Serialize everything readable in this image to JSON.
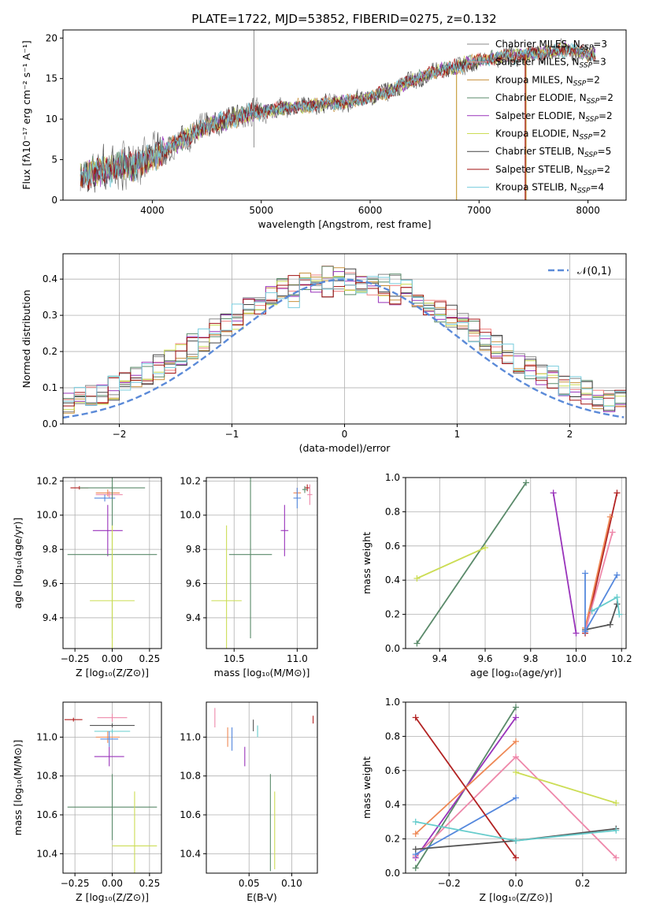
{
  "title": "PLATE=1722, MJD=53852, FIBERID=0275, z=0.132",
  "colors": [
    "#555555",
    "#b22222",
    "#d2a04a",
    "#4a7a6a",
    "#9933bb",
    "#ccdd55",
    "#5588dd",
    "#ee8855",
    "#66cccc",
    "#ee88aa"
  ],
  "models": [
    {
      "name": "Chabrier MILES",
      "nssp": "3",
      "color": "#888888"
    },
    {
      "name": "Salpeter MILES",
      "nssp": "3",
      "color": "#f08080"
    },
    {
      "name": "Kroupa MILES",
      "nssp": "2",
      "color": "#c8903c"
    },
    {
      "name": "Chabrier ELODIE",
      "nssp": "2",
      "color": "#5a8a6a"
    },
    {
      "name": "Salpeter ELODIE",
      "nssp": "2",
      "color": "#9933bb"
    },
    {
      "name": "Kroupa ELODIE",
      "nssp": "2",
      "color": "#ccdd55"
    },
    {
      "name": "Chabrier STELIB",
      "nssp": "5",
      "color": "#444444"
    },
    {
      "name": "Salpeter STELIB",
      "nssp": "2",
      "color": "#a01010"
    },
    {
      "name": "Kroupa STELIB",
      "nssp": "4",
      "color": "#77ccdd"
    }
  ],
  "chart_data": [
    {
      "type": "line",
      "id": "spectrum",
      "xlabel": "wavelength [Angstrom, rest frame]",
      "ylabel": "Flux [fλ10⁻¹⁷ erg cm⁻² s⁻¹ A⁻¹]",
      "xlim": [
        3180,
        8350
      ],
      "ylim": [
        0,
        21
      ],
      "xticks": [
        4000,
        5000,
        6000,
        7000,
        8000
      ],
      "yticks": [
        0,
        5,
        10,
        15,
        20
      ],
      "continuum": [
        [
          3340,
          3.0
        ],
        [
          3500,
          3.4
        ],
        [
          3700,
          4.2
        ],
        [
          3900,
          4.6
        ],
        [
          4000,
          5.3
        ],
        [
          4200,
          6.8
        ],
        [
          4400,
          8.5
        ],
        [
          4600,
          9.6
        ],
        [
          4800,
          10.3
        ],
        [
          5000,
          10.9
        ],
        [
          5200,
          11.3
        ],
        [
          5400,
          11.6
        ],
        [
          5600,
          11.9
        ],
        [
          5800,
          12.1
        ],
        [
          6000,
          12.7
        ],
        [
          6200,
          13.6
        ],
        [
          6400,
          14.8
        ],
        [
          6600,
          15.9
        ],
        [
          6800,
          16.5
        ],
        [
          7000,
          17.2
        ],
        [
          7200,
          17.7
        ],
        [
          7400,
          17.9
        ],
        [
          7600,
          18.2
        ],
        [
          7800,
          18.6
        ],
        [
          8050,
          18.0
        ]
      ]
    },
    {
      "type": "line",
      "id": "residuals",
      "xlabel": "(data-model)/error",
      "ylabel": "Normed distribution",
      "legend": "𝒩(0,1)",
      "xlim": [
        -2.5,
        2.5
      ],
      "ylim": [
        0,
        0.47
      ],
      "xticks": [
        -2,
        -1,
        0,
        1,
        2
      ],
      "yticks": [
        0.0,
        0.1,
        0.2,
        0.3,
        0.4
      ]
    },
    {
      "type": "scatter",
      "id": "age_vs_Z",
      "xlabel": "Z [log₁₀(Z/Z⊙)]",
      "ylabel": "age  [log₁₀(age/yr)]",
      "xlim": [
        -0.33,
        0.33
      ],
      "ylim": [
        9.22,
        10.22
      ],
      "xticks": [
        -0.25,
        0.0,
        0.25
      ],
      "yticks": [
        9.4,
        9.6,
        9.8,
        10.0,
        10.2
      ],
      "points": [
        {
          "x": -0.22,
          "y": 10.16,
          "xe": 0.06,
          "ye": 0.01,
          "c": "#b22222"
        },
        {
          "x": 0.0,
          "y": 10.16,
          "xe": 0.22,
          "ye": 0.01,
          "c": "#5a8a6a"
        },
        {
          "x": -0.03,
          "y": 10.13,
          "xe": 0.08,
          "ye": 0.02,
          "c": "#ee8855"
        },
        {
          "x": -0.02,
          "y": 10.12,
          "xe": 0.09,
          "ye": 0.02,
          "c": "#ee88aa"
        },
        {
          "x": -0.05,
          "y": 10.1,
          "xe": 0.07,
          "ye": 0.02,
          "c": "#5588dd"
        },
        {
          "x": -0.03,
          "y": 9.91,
          "xe": 0.1,
          "ye": 0.15,
          "c": "#9933bb"
        },
        {
          "x": 0.0,
          "y": 9.77,
          "xe": 0.3,
          "ye": 0.49,
          "c": "#5a8a6a"
        },
        {
          "x": 0.0,
          "y": 9.5,
          "xe": 0.15,
          "ye": 0.44,
          "c": "#ccdd55"
        }
      ]
    },
    {
      "type": "scatter",
      "id": "age_vs_mass",
      "xlabel": "mass [log₁₀(M/M⊙)]",
      "ylabel": "",
      "xlim": [
        10.28,
        11.16
      ],
      "ylim": [
        9.22,
        10.22
      ],
      "xticks": [
        10.5,
        11.0
      ],
      "yticks": [
        9.4,
        9.6,
        9.8,
        10.0,
        10.2
      ],
      "points": [
        {
          "x": 11.08,
          "y": 10.16,
          "xe": 0.02,
          "ye": 0.02,
          "c": "#b22222"
        },
        {
          "x": 11.06,
          "y": 10.15,
          "xe": 0.02,
          "ye": 0.02,
          "c": "#5a8a6a"
        },
        {
          "x": 11.0,
          "y": 10.13,
          "xe": 0.03,
          "ye": 0.03,
          "c": "#ee8855"
        },
        {
          "x": 11.1,
          "y": 10.12,
          "xe": 0.02,
          "ye": 0.06,
          "c": "#ee88aa"
        },
        {
          "x": 11.0,
          "y": 10.1,
          "xe": 0.03,
          "ye": 0.06,
          "c": "#5588dd"
        },
        {
          "x": 10.9,
          "y": 9.91,
          "xe": 0.03,
          "ye": 0.15,
          "c": "#9933bb"
        },
        {
          "x": 10.63,
          "y": 9.77,
          "xe": 0.17,
          "ye": 0.49,
          "c": "#5a8a6a"
        },
        {
          "x": 10.44,
          "y": 9.5,
          "xe": 0.12,
          "ye": 0.44,
          "c": "#ccdd55"
        }
      ]
    },
    {
      "type": "line",
      "id": "weight_vs_age",
      "xlabel": "age  [log₁₀(age/yr)]",
      "ylabel": "mass weight",
      "xlim": [
        9.25,
        10.22
      ],
      "ylim": [
        0,
        1.0
      ],
      "xticks": [
        9.4,
        9.6,
        9.8,
        10.0,
        10.2
      ],
      "yticks": [
        0.0,
        0.2,
        0.4,
        0.6,
        0.8,
        1.0
      ],
      "series": [
        {
          "c": "#5a8a6a",
          "pts": [
            [
              9.3,
              0.03
            ],
            [
              9.78,
              0.97
            ]
          ]
        },
        {
          "c": "#ccdd55",
          "pts": [
            [
              9.3,
              0.41
            ],
            [
              9.6,
              0.59
            ]
          ]
        },
        {
          "c": "#9933bb",
          "pts": [
            [
              9.9,
              0.91
            ],
            [
              10.0,
              0.09
            ]
          ]
        },
        {
          "c": "#555555",
          "pts": [
            [
              10.04,
              0.11
            ],
            [
              10.15,
              0.14
            ],
            [
              10.18,
              0.26
            ]
          ]
        },
        {
          "c": "#b22222",
          "pts": [
            [
              10.04,
              0.09
            ],
            [
              10.18,
              0.91
            ]
          ]
        },
        {
          "c": "#ee8855",
          "pts": [
            [
              10.04,
              0.12
            ],
            [
              10.15,
              0.77
            ]
          ]
        },
        {
          "c": "#ee88aa",
          "pts": [
            [
              10.04,
              0.1
            ],
            [
              10.16,
              0.68
            ]
          ]
        },
        {
          "c": "#5588dd",
          "pts": [
            [
              10.04,
              0.44
            ],
            [
              10.04,
              0.1
            ],
            [
              10.18,
              0.43
            ]
          ]
        },
        {
          "c": "#66cccc",
          "pts": [
            [
              10.07,
              0.22
            ],
            [
              10.18,
              0.3
            ],
            [
              10.19,
              0.2
            ]
          ]
        }
      ]
    },
    {
      "type": "scatter",
      "id": "mass_vs_Z",
      "xlabel": "Z [log₁₀(Z/Z⊙)]",
      "ylabel": "mass [log₁₀(M/M⊙)]",
      "xlim": [
        -0.33,
        0.33
      ],
      "ylim": [
        10.3,
        11.18
      ],
      "xticks": [
        -0.25,
        0.0,
        0.25
      ],
      "yticks": [
        10.4,
        10.6,
        10.8,
        11.0
      ],
      "points": [
        {
          "x": -0.26,
          "y": 11.09,
          "xe": 0.06,
          "ye": 0.01,
          "c": "#b22222"
        },
        {
          "x": 0.0,
          "y": 11.1,
          "xe": 0.1,
          "ye": 0.02,
          "c": "#ee88aa"
        },
        {
          "x": 0.0,
          "y": 11.06,
          "xe": 0.15,
          "ye": 0.01,
          "c": "#555555"
        },
        {
          "x": 0.0,
          "y": 11.03,
          "xe": 0.12,
          "ye": 0.01,
          "c": "#66cccc"
        },
        {
          "x": -0.03,
          "y": 11.0,
          "xe": 0.08,
          "ye": 0.03,
          "c": "#ee8855"
        },
        {
          "x": -0.02,
          "y": 10.99,
          "xe": 0.06,
          "ye": 0.04,
          "c": "#5588dd"
        },
        {
          "x": -0.02,
          "y": 10.9,
          "xe": 0.1,
          "ye": 0.05,
          "c": "#9933bb"
        },
        {
          "x": 0.0,
          "y": 10.64,
          "xe": 0.3,
          "ye": 0.17,
          "c": "#5a8a6a"
        },
        {
          "x": 0.15,
          "y": 10.44,
          "xe": 0.15,
          "ye": 0.28,
          "c": "#ccdd55"
        }
      ]
    },
    {
      "type": "scatter",
      "id": "mass_vs_ebv",
      "xlabel": "E(B-V)",
      "ylabel": "",
      "xlim": [
        0.0,
        0.13
      ],
      "ylim": [
        10.3,
        11.18
      ],
      "xticks": [
        0.05,
        0.1
      ],
      "yticks": [
        10.4,
        10.6,
        10.8,
        11.0
      ],
      "points": [
        {
          "x": 0.125,
          "y": 11.09,
          "ye": 0.02,
          "c": "#b22222"
        },
        {
          "x": 0.01,
          "y": 11.1,
          "ye": 0.05,
          "c": "#ee88aa"
        },
        {
          "x": 0.055,
          "y": 11.06,
          "ye": 0.03,
          "c": "#555555"
        },
        {
          "x": 0.06,
          "y": 11.03,
          "ye": 0.03,
          "c": "#66cccc"
        },
        {
          "x": 0.025,
          "y": 11.0,
          "ye": 0.05,
          "c": "#ee8855"
        },
        {
          "x": 0.03,
          "y": 10.99,
          "ye": 0.06,
          "c": "#5588dd"
        },
        {
          "x": 0.045,
          "y": 10.9,
          "ye": 0.05,
          "c": "#9933bb"
        },
        {
          "x": 0.075,
          "y": 10.56,
          "ye": 0.25,
          "c": "#5a8a6a"
        },
        {
          "x": 0.08,
          "y": 10.52,
          "ye": 0.2,
          "c": "#ccdd55"
        }
      ]
    },
    {
      "type": "line",
      "id": "weight_vs_Z",
      "xlabel": "Z [log₁₀(Z/Z⊙)]",
      "ylabel": "mass weight",
      "xlim": [
        -0.33,
        0.33
      ],
      "ylim": [
        0,
        1.0
      ],
      "xticks": [
        -0.2,
        0.0,
        0.2
      ],
      "yticks": [
        0.0,
        0.2,
        0.4,
        0.6,
        0.8,
        1.0
      ],
      "series": [
        {
          "c": "#5a8a6a",
          "pts": [
            [
              -0.3,
              0.03
            ],
            [
              0.0,
              0.97
            ]
          ]
        },
        {
          "c": "#9933bb",
          "pts": [
            [
              -0.3,
              0.09
            ],
            [
              0.0,
              0.91
            ]
          ]
        },
        {
          "c": "#ee8855",
          "pts": [
            [
              -0.3,
              0.23
            ],
            [
              0.0,
              0.77
            ]
          ]
        },
        {
          "c": "#ee88aa",
          "pts": [
            [
              -0.3,
              0.1
            ],
            [
              0.0,
              0.68
            ],
            [
              0.3,
              0.09
            ]
          ]
        },
        {
          "c": "#ccdd55",
          "pts": [
            [
              0.0,
              0.59
            ],
            [
              0.3,
              0.41
            ]
          ]
        },
        {
          "c": "#5588dd",
          "pts": [
            [
              -0.3,
              0.11
            ],
            [
              0.0,
              0.44
            ]
          ]
        },
        {
          "c": "#b22222",
          "pts": [
            [
              -0.3,
              0.91
            ],
            [
              0.0,
              0.09
            ]
          ]
        },
        {
          "c": "#555555",
          "pts": [
            [
              -0.3,
              0.14
            ],
            [
              0.0,
              0.19
            ],
            [
              0.3,
              0.26
            ]
          ]
        },
        {
          "c": "#66cccc",
          "pts": [
            [
              -0.3,
              0.3
            ],
            [
              0.0,
              0.19
            ],
            [
              0.3,
              0.25
            ]
          ]
        }
      ]
    }
  ]
}
